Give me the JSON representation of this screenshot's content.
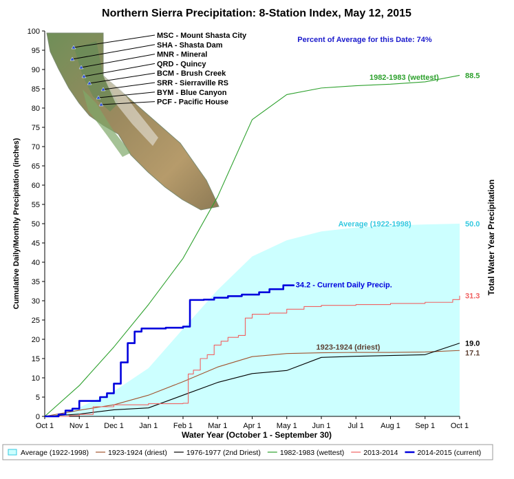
{
  "chart_data": {
    "type": "line",
    "title": "Northern Sierra Precipitation: 8-Station Index, May 12, 2015",
    "subtitle": "Percent of Average for this Date: 74%",
    "xlabel": "Water Year (October 1 - September 30)",
    "ylabel": "Cumulative Daily/Monthly Precipitation (inches)",
    "ylabel_right": "Total Water Year Precipitation",
    "xlim": [
      0,
      12
    ],
    "ylim": [
      0,
      100
    ],
    "x_ticks": [
      "Oct 1",
      "Nov 1",
      "Dec 1",
      "Jan 1",
      "Feb 1",
      "Mar 1",
      "Apr 1",
      "May 1",
      "Jun 1",
      "Jul 1",
      "Aug 1",
      "Sep 1",
      "Oct 1"
    ],
    "y_ticks": [
      "0",
      "5",
      "10",
      "15",
      "20",
      "25",
      "30",
      "35",
      "40",
      "45",
      "50",
      "55",
      "60",
      "65",
      "70",
      "75",
      "80",
      "85",
      "90",
      "95",
      "100"
    ],
    "grid": false,
    "legend_position": "bottom",
    "stations": [
      "MSC - Mount Shasta City",
      "SHA - Shasta Dam",
      "MNR - Mineral",
      "QRD - Quincy",
      "BCM - Brush Creek",
      "SRR - Sierraville RS",
      "BYM - Blue Canyon",
      "PCF - Pacific House"
    ],
    "series": [
      {
        "name": "Average (1922-1998)",
        "style": "area",
        "color": "#ccffff",
        "line_color": "#33c9e0",
        "label": "Average (1922-1998)",
        "end_value": "50.0",
        "points": [
          [
            0,
            0
          ],
          [
            0.5,
            0.7
          ],
          [
            1,
            2.3
          ],
          [
            2,
            6.5
          ],
          [
            3,
            12.5
          ],
          [
            4,
            22.7
          ],
          [
            5,
            32.8
          ],
          [
            6,
            41.5
          ],
          [
            7,
            45.7
          ],
          [
            8,
            48
          ],
          [
            9,
            49
          ],
          [
            10,
            49.5
          ],
          [
            11,
            49.8
          ],
          [
            12,
            50
          ]
        ]
      },
      {
        "name": "1923-1924 (driest)",
        "style": "line",
        "color": "#a0522d",
        "label": "1923-1924 (driest)",
        "label_color": "#5c4033",
        "end_value": "17.1",
        "points": [
          [
            0,
            0
          ],
          [
            1,
            1.6
          ],
          [
            2,
            3
          ],
          [
            3,
            5.5
          ],
          [
            4,
            9
          ],
          [
            5,
            12.8
          ],
          [
            6,
            15.5
          ],
          [
            7,
            16.3
          ],
          [
            8,
            16.5
          ],
          [
            9,
            16.6
          ],
          [
            10,
            16.6
          ],
          [
            11,
            16.7
          ],
          [
            12,
            17.1
          ]
        ]
      },
      {
        "name": "1976-1977 (2nd Driest)",
        "style": "line",
        "color": "#000000",
        "end_value": "19.0",
        "points": [
          [
            0,
            0
          ],
          [
            1,
            0.6
          ],
          [
            2,
            1.7
          ],
          [
            3,
            2.2
          ],
          [
            4,
            5.5
          ],
          [
            5,
            8.8
          ],
          [
            6,
            11.1
          ],
          [
            7,
            11.9
          ],
          [
            8,
            15.3
          ],
          [
            9,
            15.6
          ],
          [
            10,
            15.8
          ],
          [
            11,
            16
          ],
          [
            12,
            19
          ]
        ]
      },
      {
        "name": "1982-1983 (wettest)",
        "style": "line",
        "color": "#2ca02c",
        "label": "1982-1983 (wettest)",
        "end_value": "88.5",
        "points": [
          [
            0,
            0
          ],
          [
            1,
            8
          ],
          [
            2,
            18
          ],
          [
            3,
            29
          ],
          [
            4,
            41
          ],
          [
            5,
            57
          ],
          [
            6,
            77
          ],
          [
            7,
            83.5
          ],
          [
            8,
            85.2
          ],
          [
            9,
            85.8
          ],
          [
            10,
            86.2
          ],
          [
            11,
            86.8
          ],
          [
            12,
            88.5
          ]
        ]
      },
      {
        "name": "2013-2014",
        "style": "step",
        "color": "#f06060",
        "end_value": "31.3",
        "points": [
          [
            0,
            0
          ],
          [
            0.7,
            0.2
          ],
          [
            1,
            0.5
          ],
          [
            1.4,
            2.5
          ],
          [
            2,
            3
          ],
          [
            3,
            3.3
          ],
          [
            4,
            3.4
          ],
          [
            4.15,
            11
          ],
          [
            4.3,
            12
          ],
          [
            4.5,
            15
          ],
          [
            4.7,
            16
          ],
          [
            4.9,
            18.5
          ],
          [
            5.1,
            19.5
          ],
          [
            5.3,
            20.5
          ],
          [
            5.6,
            21
          ],
          [
            5.8,
            25.5
          ],
          [
            6,
            26.5
          ],
          [
            6.5,
            26.8
          ],
          [
            7,
            27.8
          ],
          [
            7.5,
            28.5
          ],
          [
            8,
            28.8
          ],
          [
            9,
            29
          ],
          [
            10,
            29.3
          ],
          [
            11,
            29.6
          ],
          [
            11.8,
            30.3
          ],
          [
            12,
            31.3
          ]
        ]
      },
      {
        "name": "2014-2015 (current)",
        "style": "step",
        "color": "#0000dd",
        "label": "34.2 -  Current Daily Precip.",
        "end_value": "34.2",
        "points": [
          [
            0,
            0
          ],
          [
            0.4,
            0.5
          ],
          [
            0.6,
            1.5
          ],
          [
            0.8,
            2
          ],
          [
            1,
            4
          ],
          [
            1.3,
            4
          ],
          [
            1.6,
            5
          ],
          [
            1.8,
            6
          ],
          [
            2,
            8.5
          ],
          [
            2.2,
            14
          ],
          [
            2.4,
            19
          ],
          [
            2.6,
            22
          ],
          [
            2.8,
            22.8
          ],
          [
            3.5,
            23
          ],
          [
            4,
            23.3
          ],
          [
            4.2,
            30.2
          ],
          [
            4.6,
            30.3
          ],
          [
            4.9,
            30.8
          ],
          [
            5.3,
            31.2
          ],
          [
            5.7,
            31.6
          ],
          [
            6.2,
            32.2
          ],
          [
            6.5,
            33
          ],
          [
            6.9,
            34
          ],
          [
            7.2,
            34.2
          ]
        ]
      }
    ]
  }
}
